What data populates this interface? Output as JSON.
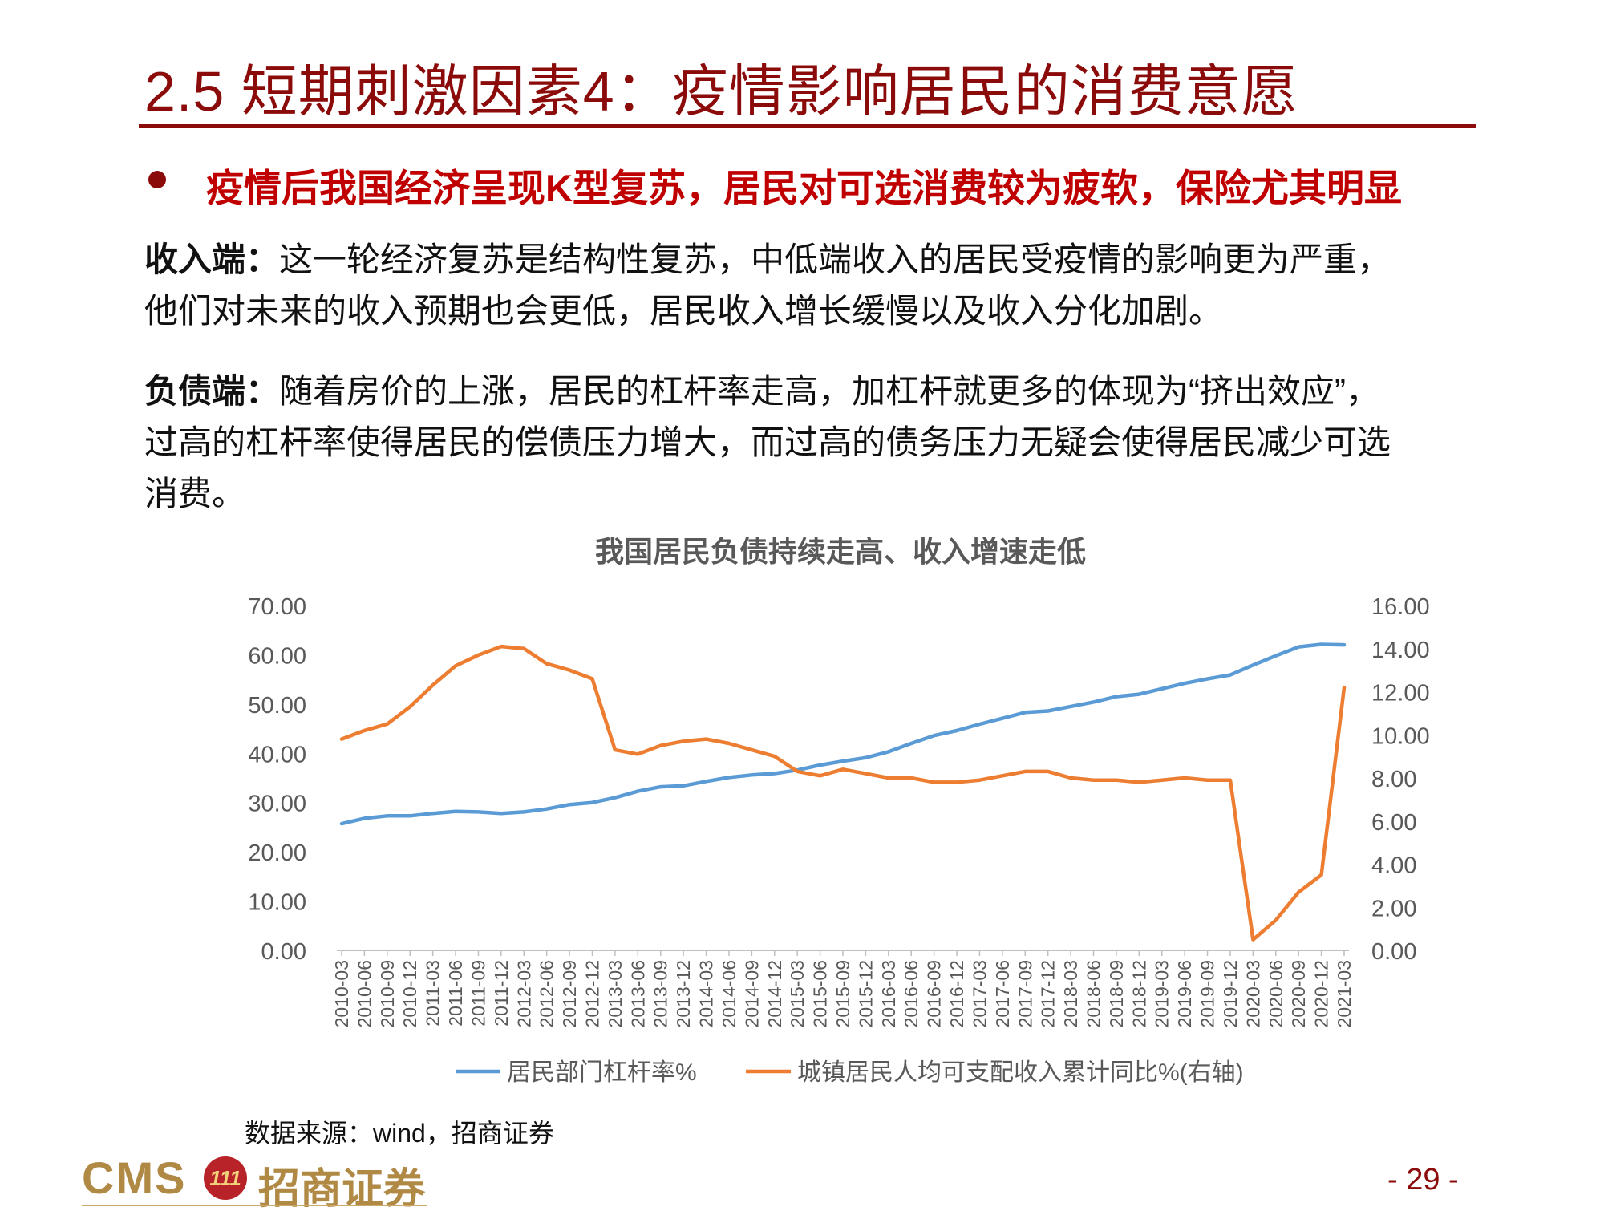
{
  "slide": {
    "title": "2.5 短期刺激因素4：疫情影响居民的消费意愿",
    "headline": "疫情后我国经济呈现K型复苏，居民对可选消费较为疲软，保险尤其明显",
    "income": {
      "label": "收入端：",
      "line1": "这一轮经济复苏是结构性复苏，中低端收入的居民受疫情的影响更为严重，",
      "line2": "他们对未来的收入预期也会更低，居民收入增长缓慢以及收入分化加剧。"
    },
    "debt": {
      "label": "负债端：",
      "line1": "随着房价的上涨，居民的杠杆率走高，加杠杆就更多的体现为“挤出效应”，",
      "line2": "过高的杠杆率使得居民的偿债压力增大，而过高的债务压力无疑会使得居民减少可选",
      "line3": "消费。"
    },
    "source": "数据来源：wind，招商证券",
    "logo_text": "CMS",
    "logo_cn": "招商证券",
    "logo_emblem": "111",
    "page_number": "- 29 -"
  },
  "chart_data": {
    "type": "line",
    "title": "我国居民负债持续走高、收入增速走低",
    "categories": [
      "2010-03",
      "2010-06",
      "2010-09",
      "2010-12",
      "2011-03",
      "2011-06",
      "2011-09",
      "2011-12",
      "2012-03",
      "2012-06",
      "2012-09",
      "2012-12",
      "2013-03",
      "2013-06",
      "2013-09",
      "2013-12",
      "2014-03",
      "2014-06",
      "2014-09",
      "2014-12",
      "2015-03",
      "2015-06",
      "2015-09",
      "2015-12",
      "2016-03",
      "2016-06",
      "2016-09",
      "2016-12",
      "2017-03",
      "2017-06",
      "2017-09",
      "2017-12",
      "2018-03",
      "2018-06",
      "2018-09",
      "2018-12",
      "2019-03",
      "2019-06",
      "2019-09",
      "2019-12",
      "2020-03",
      "2020-06",
      "2020-09",
      "2020-12",
      "2021-03"
    ],
    "y_left": {
      "ylim": [
        0,
        70
      ],
      "ticks": [
        "0.00",
        "10.00",
        "20.00",
        "30.00",
        "40.00",
        "50.00",
        "60.00",
        "70.00"
      ]
    },
    "y_right": {
      "ylim": [
        0,
        16
      ],
      "ticks": [
        "0.00",
        "2.00",
        "4.00",
        "6.00",
        "8.00",
        "10.00",
        "12.00",
        "14.00",
        "16.00"
      ]
    },
    "series": [
      {
        "name": "居民部门杠杆率%",
        "axis": "left",
        "color": "#5B9BD5",
        "values": [
          25.7,
          26.8,
          27.3,
          27.3,
          27.8,
          28.2,
          28.1,
          27.8,
          28.1,
          28.7,
          29.6,
          30.0,
          31.0,
          32.3,
          33.2,
          33.4,
          34.3,
          35.1,
          35.6,
          35.9,
          36.6,
          37.6,
          38.4,
          39.1,
          40.3,
          42.0,
          43.6,
          44.6,
          45.9,
          47.1,
          48.3,
          48.6,
          49.5,
          50.4,
          51.5,
          52.0,
          53.1,
          54.2,
          55.1,
          55.9,
          57.9,
          59.8,
          61.6,
          62.1,
          62.0
        ]
      },
      {
        "name": "城镇居民人均可支配收入累计同比%(右轴)",
        "axis": "right",
        "color": "#ED7D31",
        "values": [
          9.8,
          10.2,
          10.5,
          11.3,
          12.3,
          13.2,
          13.7,
          14.1,
          14.0,
          13.3,
          13.0,
          12.6,
          9.3,
          9.1,
          9.5,
          9.7,
          9.8,
          9.6,
          9.3,
          9.0,
          8.3,
          8.1,
          8.4,
          8.2,
          8.0,
          8.0,
          7.8,
          7.8,
          7.9,
          8.1,
          8.3,
          8.3,
          8.0,
          7.9,
          7.9,
          7.8,
          7.9,
          8.0,
          7.9,
          7.9,
          0.5,
          1.4,
          2.7,
          3.5,
          12.2
        ]
      }
    ],
    "legend_position": "bottom",
    "grid": false
  }
}
